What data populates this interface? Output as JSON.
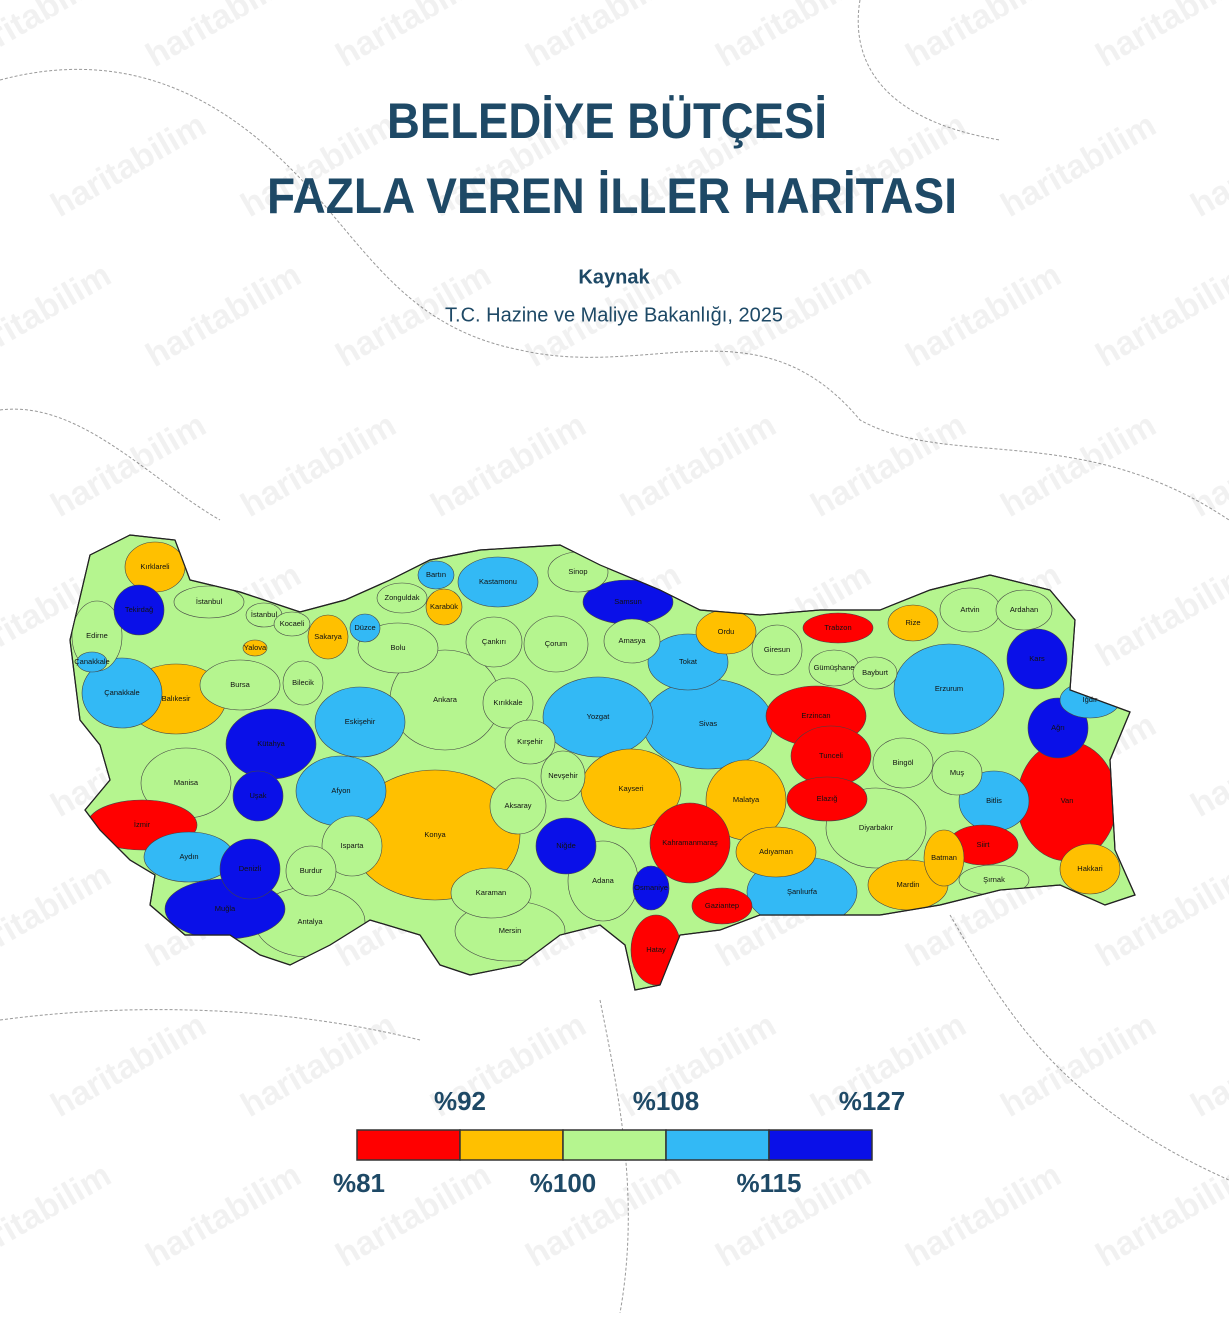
{
  "header": {
    "title_lines": [
      "BELEDİYE BÜTÇESİ",
      "FAZLA VEREN İLLER HARİTASI"
    ],
    "source_label": "Kaynak",
    "source": "T.C. Hazine ve Maliye Bakanlığı, 2025"
  },
  "watermark": "haritabilim",
  "legend": {
    "breaks": [
      {
        "value": 81,
        "label": "%81"
      },
      {
        "value": 92,
        "label": "%92"
      },
      {
        "value": 100,
        "label": "%100"
      },
      {
        "value": 108,
        "label": "%108"
      },
      {
        "value": 115,
        "label": "%115"
      },
      {
        "value": 127,
        "label": "%127"
      }
    ],
    "colors": [
      "#ff0000",
      "#ffc000",
      "#b5f58f",
      "#33b9f5",
      "#0a10e8"
    ]
  },
  "provinces": [
    {
      "name": "Kırklareli",
      "color": "#ffc000"
    },
    {
      "name": "Edirne",
      "color": "#b5f58f"
    },
    {
      "name": "Tekirdağ",
      "color": "#0a10e8"
    },
    {
      "name": "İstanbul",
      "color": "#b5f58f"
    },
    {
      "name": "İstanbul",
      "color": "#b5f58f"
    },
    {
      "name": "Kocaeli",
      "color": "#b5f58f"
    },
    {
      "name": "Yalova",
      "color": "#ffc000"
    },
    {
      "name": "Sakarya",
      "color": "#ffc000"
    },
    {
      "name": "Düzce",
      "color": "#33b9f5"
    },
    {
      "name": "Bartın",
      "color": "#33b9f5"
    },
    {
      "name": "Zonguldak",
      "color": "#b5f58f"
    },
    {
      "name": "Karabük",
      "color": "#ffc000"
    },
    {
      "name": "Kastamonu",
      "color": "#33b9f5"
    },
    {
      "name": "Sinop",
      "color": "#b5f58f"
    },
    {
      "name": "Samsun",
      "color": "#0a10e8"
    },
    {
      "name": "Çankırı",
      "color": "#b5f58f"
    },
    {
      "name": "Çorum",
      "color": "#b5f58f"
    },
    {
      "name": "Amasya",
      "color": "#b5f58f"
    },
    {
      "name": "Ordu",
      "color": "#ffc000"
    },
    {
      "name": "Trabzon",
      "color": "#ff0000"
    },
    {
      "name": "Rize",
      "color": "#ffc000"
    },
    {
      "name": "Artvin",
      "color": "#b5f58f"
    },
    {
      "name": "Ardahan",
      "color": "#b5f58f"
    },
    {
      "name": "Giresun",
      "color": "#b5f58f"
    },
    {
      "name": "Gümüşhane",
      "color": "#b5f58f"
    },
    {
      "name": "Bayburt",
      "color": "#b5f58f"
    },
    {
      "name": "Tokat",
      "color": "#33b9f5"
    },
    {
      "name": "Kars",
      "color": "#0a10e8"
    },
    {
      "name": "Erzurum",
      "color": "#33b9f5"
    },
    {
      "name": "Iğdır",
      "color": "#33b9f5"
    },
    {
      "name": "Ağrı",
      "color": "#0a10e8"
    },
    {
      "name": "Çanakkale",
      "color": "#33b9f5"
    },
    {
      "name": "Çanakkale",
      "color": "#33b9f5"
    },
    {
      "name": "Balıkesir",
      "color": "#ffc000"
    },
    {
      "name": "Bursa",
      "color": "#b5f58f"
    },
    {
      "name": "Bilecik",
      "color": "#b5f58f"
    },
    {
      "name": "Bolu",
      "color": "#b5f58f"
    },
    {
      "name": "Ankara",
      "color": "#b5f58f"
    },
    {
      "name": "Kırıkkale",
      "color": "#b5f58f"
    },
    {
      "name": "Yozgat",
      "color": "#33b9f5"
    },
    {
      "name": "Sivas",
      "color": "#33b9f5"
    },
    {
      "name": "Erzincan",
      "color": "#ff0000"
    },
    {
      "name": "Eskişehir",
      "color": "#33b9f5"
    },
    {
      "name": "Kütahya",
      "color": "#0a10e8"
    },
    {
      "name": "Kırşehir",
      "color": "#b5f58f"
    },
    {
      "name": "Tunceli",
      "color": "#ff0000"
    },
    {
      "name": "Bingöl",
      "color": "#b5f58f"
    },
    {
      "name": "Muş",
      "color": "#b5f58f"
    },
    {
      "name": "Manisa",
      "color": "#b5f58f"
    },
    {
      "name": "Nevşehir",
      "color": "#b5f58f"
    },
    {
      "name": "Kayseri",
      "color": "#ffc000"
    },
    {
      "name": "Malatya",
      "color": "#ffc000"
    },
    {
      "name": "Elazığ",
      "color": "#ff0000"
    },
    {
      "name": "Bitlis",
      "color": "#33b9f5"
    },
    {
      "name": "Van",
      "color": "#ff0000"
    },
    {
      "name": "Uşak",
      "color": "#0a10e8"
    },
    {
      "name": "Afyon",
      "color": "#33b9f5"
    },
    {
      "name": "İzmir",
      "color": "#ff0000"
    },
    {
      "name": "Konya",
      "color": "#ffc000"
    },
    {
      "name": "Aksaray",
      "color": "#b5f58f"
    },
    {
      "name": "Niğde",
      "color": "#0a10e8"
    },
    {
      "name": "Kahramanmaraş",
      "color": "#ff0000"
    },
    {
      "name": "Adıyaman",
      "color": "#ffc000"
    },
    {
      "name": "Diyarbakır",
      "color": "#b5f58f"
    },
    {
      "name": "Siirt",
      "color": "#ff0000"
    },
    {
      "name": "Batman",
      "color": "#ffc000"
    },
    {
      "name": "Isparta",
      "color": "#b5f58f"
    },
    {
      "name": "Aydın",
      "color": "#33b9f5"
    },
    {
      "name": "Denizli",
      "color": "#0a10e8"
    },
    {
      "name": "Burdur",
      "color": "#b5f58f"
    },
    {
      "name": "Adana",
      "color": "#b5f58f"
    },
    {
      "name": "Osmaniye",
      "color": "#0a10e8"
    },
    {
      "name": "Şanlıurfa",
      "color": "#33b9f5"
    },
    {
      "name": "Mardin",
      "color": "#ffc000"
    },
    {
      "name": "Şırnak",
      "color": "#b5f58f"
    },
    {
      "name": "Hakkari",
      "color": "#ffc000"
    },
    {
      "name": "Karaman",
      "color": "#b5f58f"
    },
    {
      "name": "Muğla",
      "color": "#0a10e8"
    },
    {
      "name": "Gaziantep",
      "color": "#ff0000"
    },
    {
      "name": "Antalya",
      "color": "#b5f58f"
    },
    {
      "name": "Mersin",
      "color": "#b5f58f"
    },
    {
      "name": "Hatay",
      "color": "#ff0000"
    }
  ]
}
